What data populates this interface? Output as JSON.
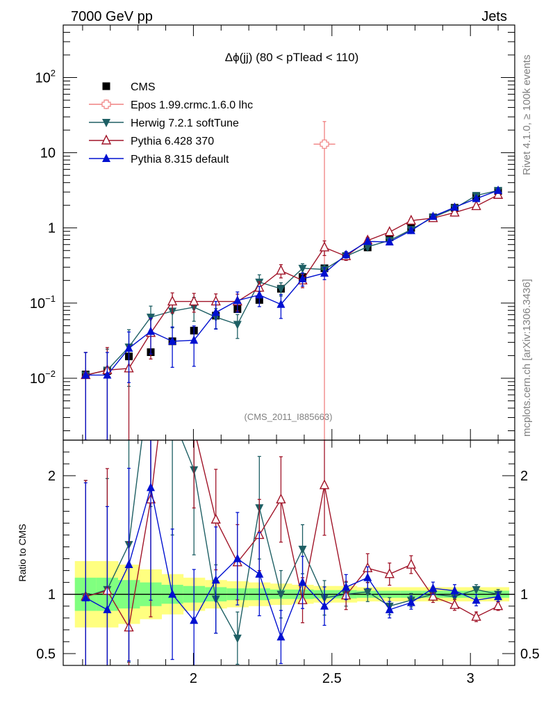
{
  "header": {
    "energy_label": "7000 GeV pp",
    "category_label": "Jets"
  },
  "side_labels": {
    "rivet": "Rivet 4.1.0, ≥ 100k events",
    "mcplots": "mcplots.cern.ch [arXiv:1306.3436]"
  },
  "chart_data": {
    "type": "scatter",
    "title": "Δϕ(jj) (80 < pTlead <  110)",
    "analysis_tag": "(CMS_2011_I885663)",
    "xlabel": "",
    "ylabel_ratio": "Ratio to CMS",
    "xlim": [
      1.53,
      3.16
    ],
    "ylim_main": [
      0.0015,
      500
    ],
    "yscale_main": "log",
    "ylim_ratio": [
      0.4,
      2.3
    ],
    "x_ticks": [
      {
        "value": 2,
        "label": "2"
      },
      {
        "value": 2.5,
        "label": "2.5"
      },
      {
        "value": 3,
        "label": "3"
      }
    ],
    "y_ticks_main": [
      {
        "value": 0.01,
        "base": "10",
        "exp": "−2"
      },
      {
        "value": 0.1,
        "base": "10",
        "exp": "−1"
      },
      {
        "value": 1,
        "base": "1",
        "exp": ""
      },
      {
        "value": 10,
        "base": "10",
        "exp": ""
      },
      {
        "value": 100,
        "base": "10",
        "exp": "2"
      }
    ],
    "y_ticks_ratio": [
      {
        "value": 0.5,
        "label": "0.5"
      },
      {
        "value": 1,
        "label": "1"
      },
      {
        "value": 2,
        "label": "2"
      }
    ],
    "x": [
      1.611,
      1.689,
      1.767,
      1.846,
      1.924,
      2.002,
      2.081,
      2.159,
      2.238,
      2.316,
      2.394,
      2.473,
      2.551,
      2.629,
      2.708,
      2.786,
      2.865,
      2.943,
      3.021,
      3.1
    ],
    "bin_half_width": 0.039,
    "band_rel_outer": [
      0.28,
      0.28,
      0.25,
      0.21,
      0.17,
      0.14,
      0.12,
      0.11,
      0.1,
      0.09,
      0.08,
      0.07,
      0.07,
      0.06,
      0.06,
      0.06,
      0.06,
      0.06,
      0.06,
      0.06
    ],
    "band_rel_inner": [
      0.14,
      0.14,
      0.12,
      0.1,
      0.08,
      0.07,
      0.06,
      0.05,
      0.05,
      0.04,
      0.04,
      0.035,
      0.035,
      0.03,
      0.03,
      0.03,
      0.03,
      0.03,
      0.03,
      0.03
    ],
    "band_colors": {
      "outer": "#ffff80",
      "inner": "#80ff80"
    },
    "series": [
      {
        "name": "CMS",
        "marker": "square",
        "color": "#000000",
        "values": [
          0.0112,
          0.0125,
          0.0195,
          0.0222,
          0.031,
          0.043,
          0.068,
          0.083,
          0.11,
          0.155,
          0.222,
          0.29,
          0.42,
          0.55,
          0.75,
          1.0,
          1.38,
          1.85,
          2.6,
          3.1
        ],
        "ratio": [
          1,
          1,
          1,
          1,
          1,
          1,
          1,
          1,
          1,
          1,
          1,
          1,
          1,
          1,
          1,
          1,
          1,
          1,
          1,
          1
        ]
      },
      {
        "name": "Epos 1.99.crmc.1.6.0 lhc",
        "marker": "open-cross",
        "color": "#f08080",
        "points": [
          {
            "x": 2.473,
            "value": 13.0,
            "lo": 0.0015,
            "hi": 26.0,
            "xerr": 0.039
          }
        ]
      },
      {
        "name": "Herwig 7.2.1 softTune",
        "marker": "triangle-down",
        "color": "#1e5f64",
        "values": [
          0.011,
          0.0128,
          0.026,
          0.065,
          0.078,
          0.088,
          0.065,
          0.052,
          0.19,
          0.155,
          0.29,
          0.28,
          0.42,
          0.56,
          0.68,
          0.95,
          1.38,
          1.82,
          2.7,
          3.15
        ],
        "ratio": [
          0.98,
          1.04,
          1.42,
          2.9,
          2.5,
          2.05,
          0.96,
          0.63,
          1.73,
          1.0,
          1.38,
          0.97,
          1.0,
          1.02,
          0.9,
          0.95,
          1.0,
          0.98,
          1.04,
          1.0
        ]
      },
      {
        "name": "Pythia 6.428 370",
        "marker": "open-triangle-up",
        "color": "#a01428",
        "values": [
          0.011,
          0.0128,
          0.0135,
          0.04,
          0.105,
          0.105,
          0.105,
          0.105,
          0.16,
          0.27,
          0.2,
          0.55,
          0.42,
          0.68,
          0.88,
          1.25,
          1.35,
          1.6,
          1.95,
          2.75
        ],
        "ratio": [
          0.98,
          1.03,
          0.72,
          1.8,
          3.3,
          2.4,
          1.63,
          1.27,
          1.5,
          1.8,
          0.95,
          1.92,
          0.99,
          1.22,
          1.17,
          1.25,
          0.98,
          0.91,
          0.81,
          0.9
        ]
      },
      {
        "name": "Pythia 8.315 default",
        "marker": "triangle-up",
        "color": "#0010d0",
        "values": [
          0.011,
          0.011,
          0.025,
          0.042,
          0.031,
          0.032,
          0.075,
          0.108,
          0.128,
          0.096,
          0.21,
          0.25,
          0.44,
          0.66,
          0.65,
          0.92,
          1.42,
          1.88,
          2.45,
          3.15
        ],
        "ratio": [
          0.97,
          0.87,
          1.25,
          1.9,
          1.0,
          0.78,
          1.12,
          1.3,
          1.17,
          0.64,
          1.1,
          0.9,
          1.06,
          1.14,
          0.87,
          0.93,
          1.05,
          1.03,
          0.95,
          0.98
        ]
      }
    ]
  }
}
